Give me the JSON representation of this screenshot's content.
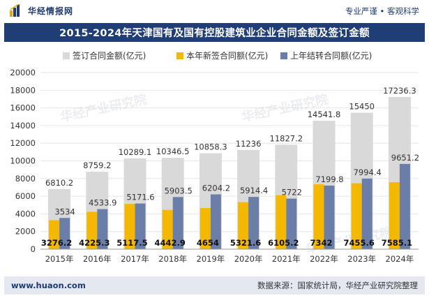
{
  "header": {
    "brand_name": "华经情报网",
    "slogan": "专业严谨 • 客观科学"
  },
  "footer": {
    "url": "www.huaon.com",
    "source": "数据来源：国家统计局，华经产业研究院整理"
  },
  "watermark": "华经产业研究院",
  "colors": {
    "total": "#d9d9d9",
    "new_contracts": "#f5b800",
    "carried_over": "#6a7ea8",
    "title_bg": "#1f3e75",
    "footer_bg": "#e3e8f1"
  },
  "chart_data": {
    "type": "bar",
    "title": "2015-2024年天津国有及国有控股建筑业企业合同金额及签订金额",
    "categories": [
      "2015年",
      "2016年",
      "2017年",
      "2018年",
      "2019年",
      "2020年",
      "2021年",
      "2022年",
      "2023年",
      "2024年"
    ],
    "series": [
      {
        "name": "签订合同金额(亿元)",
        "color": "#d9d9d9",
        "values": [
          6810.2,
          8759.2,
          10289.1,
          10346.5,
          10858.3,
          11236,
          11827.2,
          14541.8,
          15450,
          17236.3
        ]
      },
      {
        "name": "本年新签合同额(亿元)",
        "color": "#f5b800",
        "values": [
          3276.2,
          4225.3,
          5117.5,
          4442.9,
          4654,
          5321.6,
          6105.2,
          7342,
          7455.6,
          7585.1
        ]
      },
      {
        "name": "上年结转合同额(亿元)",
        "color": "#6a7ea8",
        "values": [
          3534,
          4533.9,
          5171.6,
          5903.5,
          6204.2,
          5914.4,
          5722,
          7199.8,
          7994.4,
          9651.2
        ]
      }
    ],
    "ylim": [
      0,
      20000
    ],
    "yticks": [
      0,
      2000,
      4000,
      6000,
      8000,
      10000,
      12000,
      14000,
      16000,
      18000,
      20000
    ],
    "legend_position": "top",
    "grid": true
  }
}
